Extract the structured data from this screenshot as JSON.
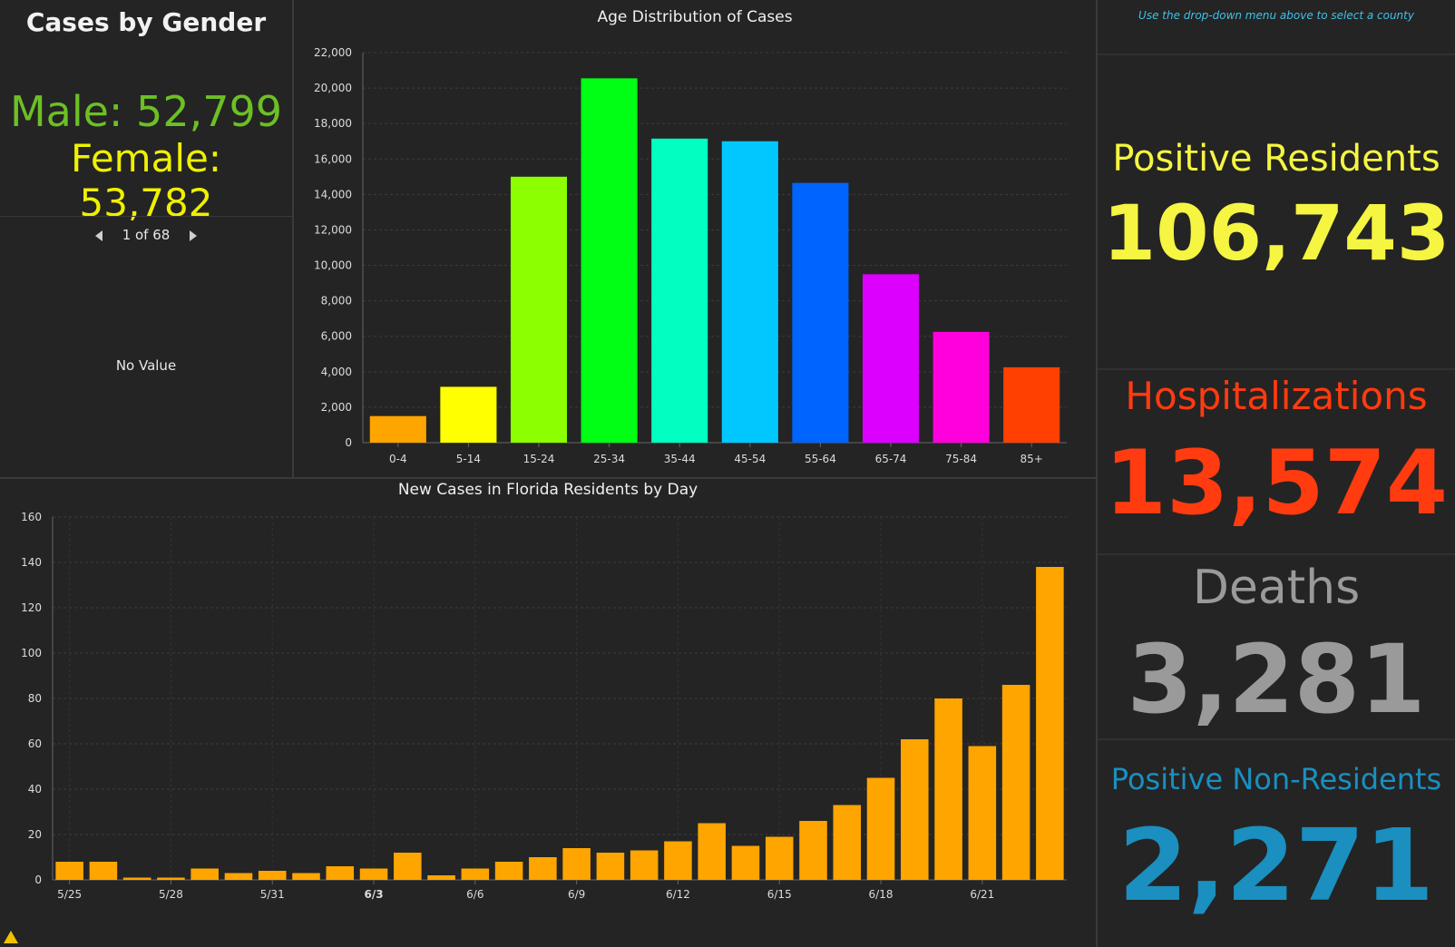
{
  "gender": {
    "title": "Cases by Gender",
    "male": "Male: 52,799",
    "female": "Female: 53,782",
    "pager": "1 of 68",
    "no_value": "No Value"
  },
  "instruction": "Use the drop-down menu above to select a county",
  "stats": {
    "positive_residents_label": "Positive Residents",
    "positive_residents_value": "106,743",
    "hospitalizations_label": "Hospitalizations",
    "hospitalizations_value": "13,574",
    "deaths_label": "Deaths",
    "deaths_value": "3,281",
    "non_residents_label": "Positive Non-Residents",
    "non_residents_value": "2,271"
  },
  "colors": {
    "male": "#6cc024",
    "female": "#f0f000",
    "positive": "#f5f542",
    "hospital": "#ff3b0f",
    "deaths": "#9a9a9a",
    "nonresident": "#1a8fc0",
    "daily_bar": "#ffa500"
  },
  "chart_data": [
    {
      "type": "bar",
      "title": "Age Distribution of Cases",
      "categories": [
        "0-4",
        "5-14",
        "15-24",
        "25-34",
        "35-44",
        "45-54",
        "55-64",
        "65-74",
        "75-84",
        "85+"
      ],
      "values": [
        1500,
        3150,
        15000,
        20550,
        17150,
        17000,
        14650,
        9500,
        6250,
        4250
      ],
      "bar_colors": [
        "#ffa500",
        "#ffff00",
        "#8cff00",
        "#00ff14",
        "#00ffc0",
        "#00c8ff",
        "#0064ff",
        "#dc00ff",
        "#ff00dc",
        "#ff4000"
      ],
      "yticks": [
        0,
        2000,
        4000,
        6000,
        8000,
        10000,
        12000,
        14000,
        16000,
        18000,
        20000,
        22000
      ],
      "ytick_labels": [
        "0",
        "2,000",
        "4,000",
        "6,000",
        "8,000",
        "10,000",
        "12,000",
        "14,000",
        "16,000",
        "18,000",
        "20,000",
        "22,000"
      ],
      "ylim": [
        0,
        22000
      ],
      "xlabel": "",
      "ylabel": ""
    },
    {
      "type": "bar",
      "title": "New Cases in Florida Residents by Day",
      "values": [
        8,
        8,
        1,
        1,
        5,
        3,
        4,
        3,
        6,
        5,
        12,
        2,
        5,
        8,
        10,
        14,
        12,
        13,
        17,
        25,
        15,
        19,
        26,
        33,
        45,
        62,
        80,
        59,
        86,
        138
      ],
      "x_tick_labels": [
        "5/25",
        "5/28",
        "5/31",
        "6/3",
        "6/6",
        "6/9",
        "6/12",
        "6/15",
        "6/18",
        "6/21"
      ],
      "yticks": [
        0,
        20,
        40,
        60,
        80,
        100,
        120,
        140,
        160
      ],
      "ytick_labels": [
        "0",
        "20",
        "40",
        "60",
        "80",
        "100",
        "120",
        "140",
        "160"
      ],
      "ylim": [
        0,
        160
      ],
      "xlabel": "",
      "ylabel": ""
    }
  ]
}
